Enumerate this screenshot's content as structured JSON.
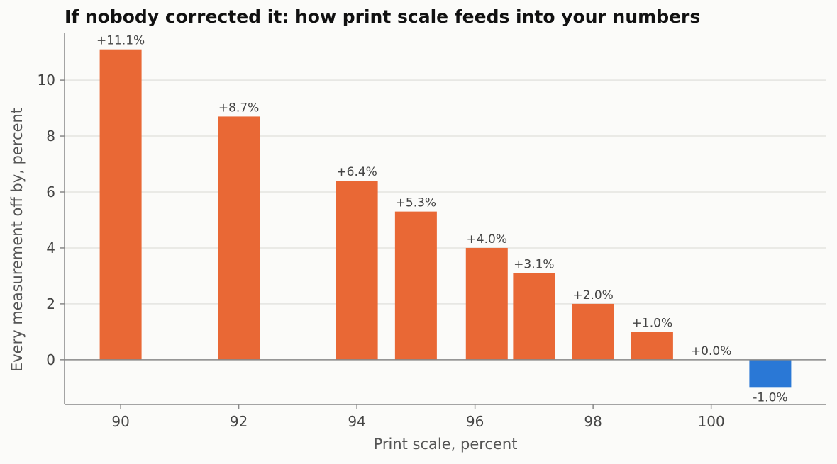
{
  "chart_data": {
    "type": "bar",
    "title": "If nobody corrected it: how print scale feeds into your numbers",
    "xlabel": "Print scale, percent",
    "ylabel": "Every measurement off by, percent",
    "x": [
      90,
      92,
      94,
      95,
      96.2,
      97,
      98,
      99,
      100,
      101
    ],
    "values": [
      11.1,
      8.7,
      6.4,
      5.3,
      4.0,
      3.1,
      2.0,
      1.0,
      0.0,
      -1.0
    ],
    "data_labels": [
      "+11.1%",
      "+8.7%",
      "+6.4%",
      "+5.3%",
      "+4.0%",
      "+3.1%",
      "+2.0%",
      "+1.0%",
      "+0.0%",
      "-1.0%"
    ],
    "xticks": [
      90,
      92,
      94,
      96,
      98,
      100
    ],
    "yticks": [
      0,
      2,
      4,
      6,
      8,
      10
    ],
    "xlim": [
      89.05,
      101.95
    ],
    "ylim": [
      -1.6,
      11.7
    ],
    "grid": "horizontal",
    "colors": {
      "positive": "#e96835",
      "negative": "#2a78d6",
      "grid": "#e4e4e0",
      "axis": "#888888",
      "zero_line": "#888888"
    }
  }
}
